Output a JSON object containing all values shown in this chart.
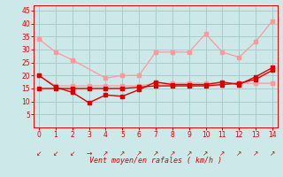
{
  "bg_color": "#cce8e8",
  "grid_color": "#aacccc",
  "light_pink": "#ff9999",
  "dark_red": "#dd0000",
  "xlabel": "Vent moyen/en rafales ( km/h )",
  "ylim": [
    0,
    47
  ],
  "xlim": [
    -0.3,
    14.3
  ],
  "yticks": [
    5,
    10,
    15,
    20,
    25,
    30,
    35,
    40,
    45
  ],
  "xticks": [
    0,
    1,
    2,
    3,
    4,
    5,
    6,
    7,
    8,
    9,
    10,
    11,
    12,
    13,
    14
  ],
  "series1_light_upper": {
    "x": [
      0,
      1,
      2,
      4,
      5,
      6,
      7,
      8,
      9,
      10,
      11,
      12,
      13,
      14
    ],
    "y": [
      34,
      29,
      26,
      19,
      20,
      20,
      29,
      29,
      29,
      36,
      29,
      27,
      33,
      41
    ]
  },
  "series2_light_lower": {
    "x": [
      0,
      1,
      2,
      3,
      4,
      5,
      6,
      7,
      8,
      9,
      10,
      11,
      12,
      13,
      14
    ],
    "y": [
      20,
      16,
      16,
      16,
      16,
      16,
      16,
      17,
      17,
      17,
      17,
      17,
      17,
      17,
      17
    ]
  },
  "series3_dark_jagged": {
    "x": [
      0,
      1,
      2,
      3,
      4,
      5,
      6,
      7,
      8,
      9,
      10,
      11,
      12,
      13,
      14
    ],
    "y": [
      20,
      15.5,
      13.5,
      9.5,
      12.5,
      12,
      14.5,
      17.5,
      16.5,
      16.5,
      16.5,
      17.5,
      16.5,
      19.5,
      23
    ]
  },
  "series4_dark_trend": {
    "x": [
      0,
      1,
      2,
      3,
      4,
      5,
      6,
      7,
      8,
      9,
      10,
      11,
      12,
      13,
      14
    ],
    "y": [
      15,
      15,
      15,
      15,
      15,
      15,
      15.5,
      16,
      16,
      16,
      16,
      16.5,
      17,
      18.5,
      22
    ]
  },
  "arrow_chars": [
    "↙",
    "↙",
    "↙",
    "→",
    "↗",
    "↗",
    "↗",
    "↗",
    "↗",
    "↗",
    "↗",
    "↗",
    "↗",
    "↗",
    "↗"
  ]
}
